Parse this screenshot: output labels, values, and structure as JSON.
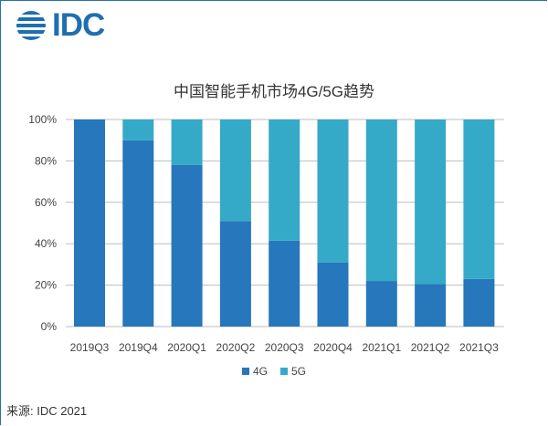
{
  "logo": {
    "text": "IDC",
    "icon": "idc-globe-icon"
  },
  "chart_data": {
    "type": "bar",
    "stacked": true,
    "title": "中国智能手机市场4G/5G趋势",
    "categories": [
      "2019Q3",
      "2019Q4",
      "2020Q1",
      "2020Q2",
      "2020Q3",
      "2020Q4",
      "2021Q1",
      "2021Q2",
      "2021Q3"
    ],
    "series": [
      {
        "name": "4G",
        "color": "#2677bb",
        "values": [
          100,
          90,
          78,
          51,
          41.5,
          31,
          22,
          20.5,
          23
        ]
      },
      {
        "name": "5G",
        "color": "#35aac8",
        "values": [
          0,
          10,
          22,
          49,
          58.5,
          69,
          78,
          79.5,
          77
        ]
      }
    ],
    "yticks": [
      "0%",
      "20%",
      "40%",
      "60%",
      "80%",
      "100%"
    ],
    "ylim": [
      0,
      100
    ],
    "grid": true,
    "legend_position": "bottom"
  },
  "source": "来源: IDC 2021"
}
